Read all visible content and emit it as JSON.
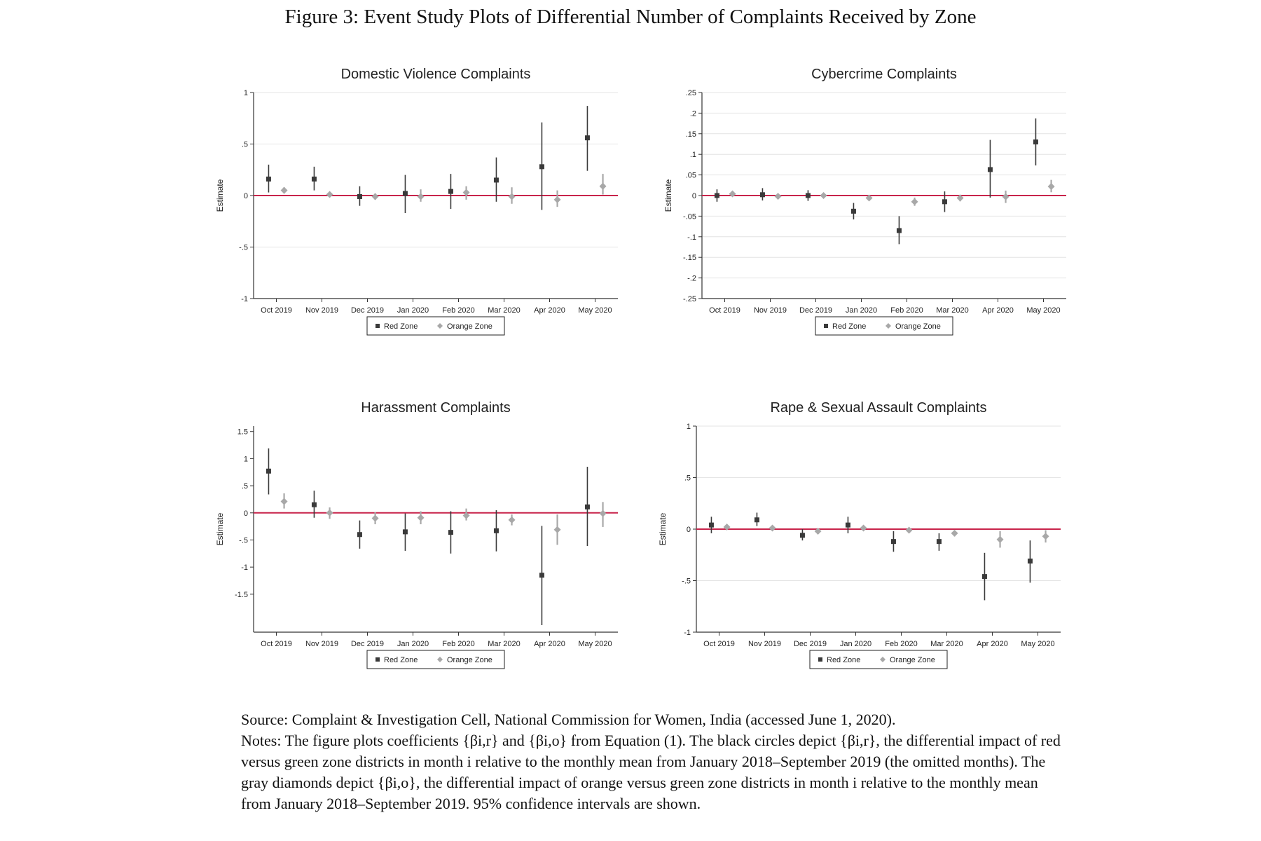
{
  "figure_title": "Figure 3: Event Study Plots of Differential Number of Complaints Received by Zone",
  "source_text": "Source: Complaint & Investigation Cell, National Commission for Women, India (accessed June 1, 2020).",
  "notes_text": "Notes: The figure plots coefficients {βi,r} and {βi,o} from Equation (1). The black circles depict {βi,r}, the differential impact of red versus green zone districts in month i relative to the monthly mean from January 2018–September 2019 (the omitted months). The gray diamonds depict {βi,o}, the differential impact of orange versus green zone districts in month i relative to the monthly mean from January 2018–September 2019. 95% confidence intervals are shown.",
  "colors": {
    "red_zone": "#3a3a3a",
    "orange_zone": "#a8a8a8",
    "zero_line": "#c8244b",
    "grid": "#e4e4e4"
  },
  "chart_data": [
    {
      "type": "scatter",
      "title": "Domestic Violence Complaints",
      "ylabel": "Estimate",
      "xlabel": "",
      "categories": [
        "Oct 2019",
        "Nov 2019",
        "Dec 2019",
        "Jan 2020",
        "Feb 2020",
        "Mar 2020",
        "Apr 2020",
        "May 2020"
      ],
      "ylim": [
        -1,
        1
      ],
      "yticks": [
        -1,
        -0.5,
        0,
        0.5,
        1
      ],
      "ytick_labels": [
        "-1",
        "-.5",
        "0",
        ".5",
        "1"
      ],
      "grid": true,
      "legend_placement": "bottom",
      "series": [
        {
          "name": "Red Zone",
          "marker": "square",
          "values": [
            0.16,
            0.16,
            -0.01,
            0.02,
            0.04,
            0.15,
            0.28,
            0.56
          ],
          "ci_low": [
            0.03,
            0.05,
            -0.1,
            -0.17,
            -0.13,
            -0.06,
            -0.14,
            0.24
          ],
          "ci_high": [
            0.3,
            0.28,
            0.09,
            0.2,
            0.21,
            0.37,
            0.71,
            0.87
          ]
        },
        {
          "name": "Orange Zone",
          "marker": "diamond",
          "values": [
            0.05,
            0.01,
            -0.01,
            -0.01,
            0.03,
            -0.01,
            -0.04,
            0.09
          ],
          "ci_low": [
            0.02,
            -0.01,
            -0.04,
            -0.06,
            -0.04,
            -0.08,
            -0.11,
            0.01
          ],
          "ci_high": [
            0.08,
            0.03,
            0.02,
            0.06,
            0.09,
            0.08,
            0.05,
            0.21
          ]
        }
      ]
    },
    {
      "type": "scatter",
      "title": "Cybercrime Complaints",
      "ylabel": "Estimate",
      "xlabel": "",
      "categories": [
        "Oct 2019",
        "Nov 2019",
        "Dec 2019",
        "Jan 2020",
        "Feb 2020",
        "Mar 2020",
        "Apr 2020",
        "May 2020"
      ],
      "ylim": [
        -0.25,
        0.25
      ],
      "yticks": [
        -0.25,
        -0.2,
        -0.15,
        -0.1,
        -0.05,
        0,
        0.05,
        0.1,
        0.15,
        0.2,
        0.25
      ],
      "ytick_labels": [
        "-.25",
        "-.2",
        "-.15",
        "-.1",
        "-.05",
        "0",
        ".05",
        ".1",
        ".15",
        ".2",
        ".25"
      ],
      "grid": true,
      "legend_placement": "bottom",
      "series": [
        {
          "name": "Red Zone",
          "marker": "square",
          "values": [
            0.0,
            0.002,
            0.0,
            -0.038,
            -0.085,
            -0.015,
            0.063,
            0.13
          ],
          "ci_low": [
            -0.015,
            -0.012,
            -0.013,
            -0.058,
            -0.118,
            -0.04,
            -0.005,
            0.073
          ],
          "ci_high": [
            0.015,
            0.018,
            0.013,
            -0.018,
            -0.05,
            0.01,
            0.135,
            0.187
          ]
        },
        {
          "name": "Orange Zone",
          "marker": "diamond",
          "values": [
            0.004,
            -0.002,
            0.0,
            -0.006,
            -0.015,
            -0.006,
            -0.003,
            0.022
          ],
          "ci_low": [
            -0.002,
            -0.008,
            -0.006,
            -0.012,
            -0.025,
            -0.014,
            -0.018,
            0.008
          ],
          "ci_high": [
            0.01,
            0.004,
            0.006,
            0.0,
            -0.005,
            0.002,
            0.012,
            0.038
          ]
        }
      ]
    },
    {
      "type": "scatter",
      "title": "Harassment Complaints",
      "ylabel": "Estimate",
      "xlabel": "",
      "categories": [
        "Oct 2019",
        "Nov 2019",
        "Dec 2019",
        "Jan 2020",
        "Feb 2020",
        "Mar 2020",
        "Apr 2020",
        "May 2020"
      ],
      "ylim": [
        -2.2,
        1.6
      ],
      "yticks": [
        -1.5,
        -1,
        -0.5,
        0,
        0.5,
        1,
        1.5
      ],
      "ytick_labels": [
        "-1.5",
        "-1",
        "-.5",
        "0",
        ".5",
        "1",
        "1.5"
      ],
      "grid": false,
      "legend_placement": "bottom",
      "series": [
        {
          "name": "Red Zone",
          "marker": "square",
          "values": [
            0.77,
            0.15,
            -0.4,
            -0.35,
            -0.36,
            -0.33,
            -1.15,
            0.11
          ],
          "ci_low": [
            0.34,
            -0.09,
            -0.66,
            -0.7,
            -0.75,
            -0.71,
            -2.07,
            -0.61
          ],
          "ci_high": [
            1.19,
            0.41,
            -0.14,
            -0.01,
            0.03,
            0.05,
            -0.24,
            0.85
          ]
        },
        {
          "name": "Orange Zone",
          "marker": "diamond",
          "values": [
            0.21,
            0.0,
            -0.1,
            -0.09,
            -0.05,
            -0.13,
            -0.31,
            -0.01
          ],
          "ci_low": [
            0.08,
            -0.11,
            -0.21,
            -0.21,
            -0.14,
            -0.23,
            -0.59,
            -0.26
          ],
          "ci_high": [
            0.36,
            0.1,
            0.01,
            0.03,
            0.08,
            -0.03,
            -0.03,
            0.2
          ]
        }
      ]
    },
    {
      "type": "scatter",
      "title": "Rape & Sexual Assault Complaints",
      "ylabel": "Estimate",
      "xlabel": "",
      "categories": [
        "Oct 2019",
        "Nov 2019",
        "Dec 2019",
        "Jan 2020",
        "Feb 2020",
        "Mar 2020",
        "Apr 2020",
        "May 2020"
      ],
      "ylim": [
        -1,
        1
      ],
      "yticks": [
        -1,
        -0.5,
        0,
        0.5,
        1
      ],
      "ytick_labels": [
        "-1",
        "-.5",
        "0",
        ".5",
        "1"
      ],
      "grid": true,
      "legend_placement": "bottom",
      "series": [
        {
          "name": "Red Zone",
          "marker": "square",
          "values": [
            0.04,
            0.09,
            -0.06,
            0.04,
            -0.12,
            -0.12,
            -0.46,
            -0.31
          ],
          "ci_low": [
            -0.04,
            0.03,
            -0.11,
            -0.04,
            -0.22,
            -0.21,
            -0.69,
            -0.52
          ],
          "ci_high": [
            0.12,
            0.16,
            0.0,
            0.12,
            -0.02,
            -0.04,
            -0.23,
            -0.11
          ]
        },
        {
          "name": "Orange Zone",
          "marker": "diamond",
          "values": [
            0.02,
            0.01,
            -0.02,
            0.01,
            -0.01,
            -0.04,
            -0.1,
            -0.07
          ],
          "ci_low": [
            0.0,
            -0.01,
            -0.04,
            -0.01,
            -0.03,
            -0.07,
            -0.18,
            -0.13
          ],
          "ci_high": [
            0.04,
            0.03,
            0.0,
            0.03,
            0.01,
            -0.01,
            -0.02,
            -0.01
          ]
        }
      ]
    }
  ]
}
